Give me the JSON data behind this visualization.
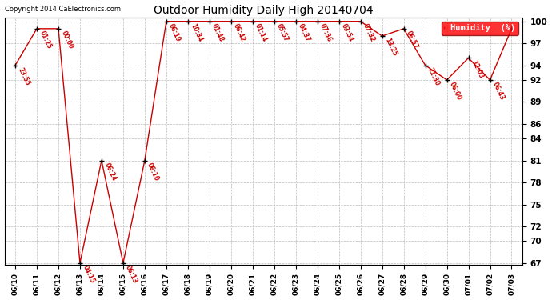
{
  "title": "Outdoor Humidity Daily High 20140704",
  "copyright": "Copyright 2014 CaElectronics.com",
  "legend_label": "Humidity  (%)",
  "x_labels": [
    "06/10",
    "06/11",
    "06/12",
    "06/13",
    "06/14",
    "06/15",
    "06/16",
    "06/17",
    "06/18",
    "06/19",
    "06/20",
    "06/21",
    "06/22",
    "06/23",
    "06/24",
    "06/25",
    "06/26",
    "06/27",
    "06/28",
    "06/29",
    "06/30",
    "07/01",
    "07/02",
    "07/03"
  ],
  "y_values": [
    94,
    99,
    99,
    67,
    81,
    67,
    81,
    100,
    100,
    100,
    100,
    100,
    100,
    100,
    100,
    100,
    100,
    98,
    99,
    94,
    92,
    95,
    92,
    99
  ],
  "time_labels": [
    "23:55",
    "01:25",
    "00:00",
    "04:15",
    "06:24",
    "06:13",
    "06:10",
    "06:19",
    "10:34",
    "01:48",
    "06:42",
    "01:14",
    "05:57",
    "04:37",
    "07:36",
    "03:54",
    "07:32",
    "13:25",
    "06:57",
    "21:30",
    "06:00",
    "12:03",
    "06:43",
    ""
  ],
  "line_color": "#cc0000",
  "marker_color": "#000000",
  "background_color": "#ffffff",
  "grid_color": "#bbbbbb",
  "ylim_min": 67,
  "ylim_max": 100,
  "y_ticks": [
    67,
    70,
    72,
    75,
    78,
    81,
    84,
    86,
    89,
    92,
    94,
    97,
    100
  ]
}
